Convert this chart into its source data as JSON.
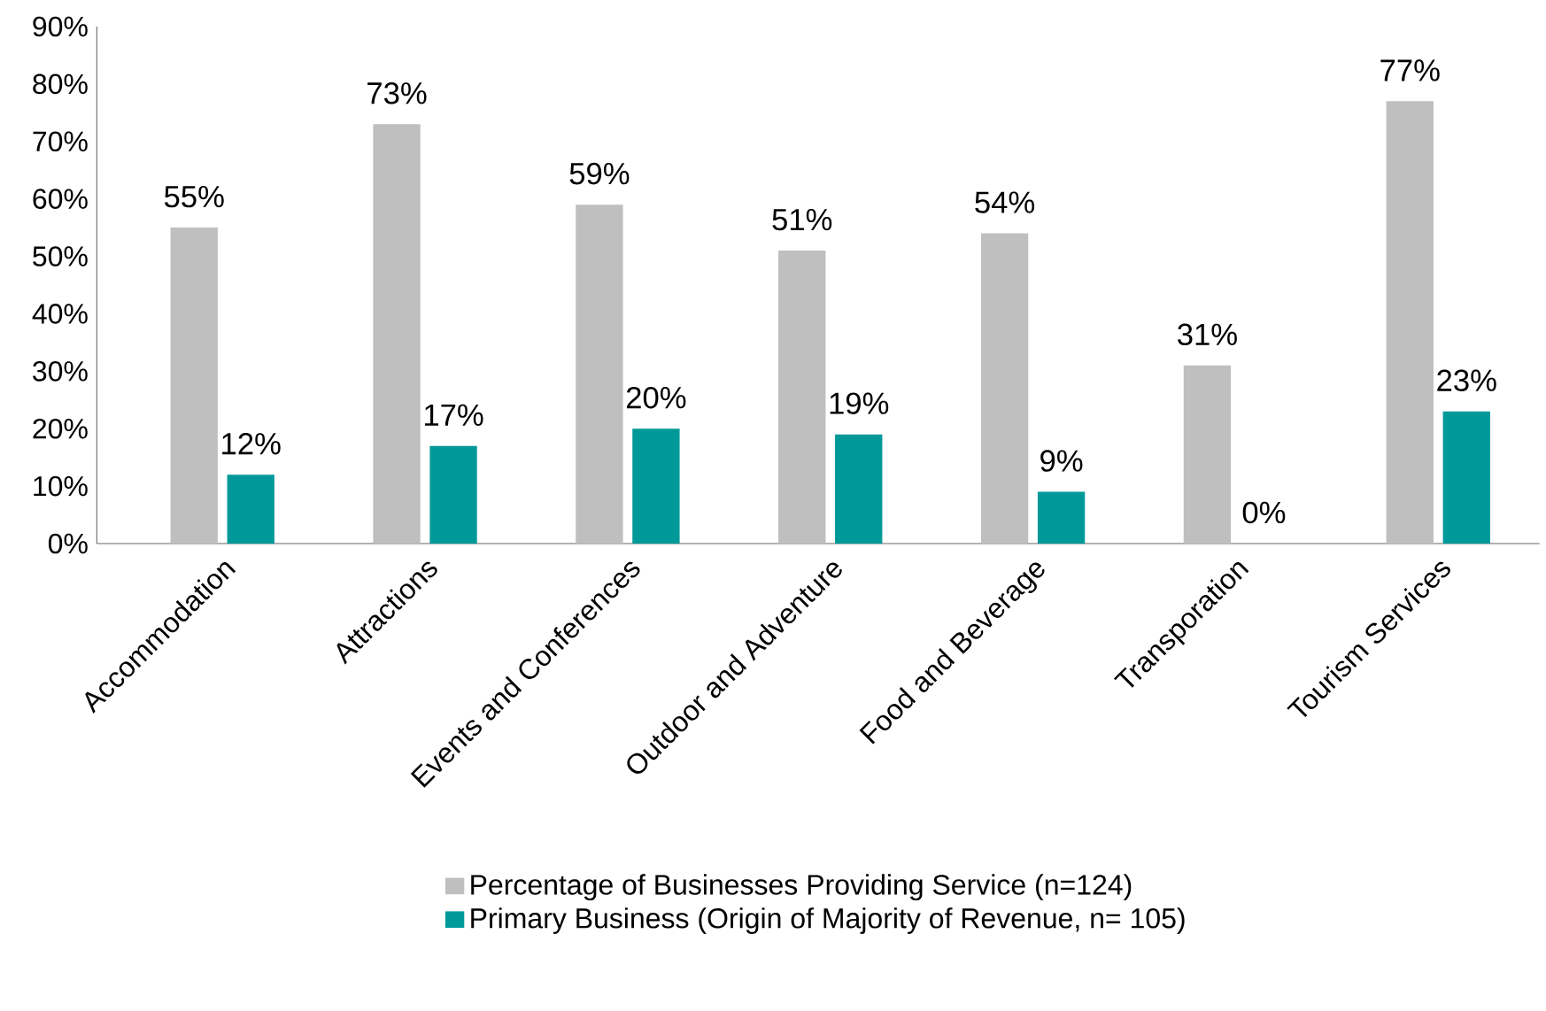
{
  "chart_data": {
    "type": "bar",
    "categories": [
      "Accommodation",
      "Attractions",
      "Events and Conferences",
      "Outdoor and Adventure",
      "Food and Beverage",
      "Transporation",
      "Tourism Services"
    ],
    "series": [
      {
        "name": "Percentage of Businesses Providing Service (n=124)",
        "color": "#bfbfbf",
        "values": [
          55,
          73,
          59,
          51,
          54,
          31,
          77
        ],
        "value_labels": [
          "55%",
          "73%",
          "59%",
          "51%",
          "54%",
          "31%",
          "77%"
        ]
      },
      {
        "name": "Primary Business (Origin of Majority of Revenue, n= 105)",
        "color": "#009999",
        "values": [
          12,
          17,
          20,
          19,
          9,
          0,
          23
        ],
        "value_labels": [
          "12%",
          "17%",
          "20%",
          "19%",
          "9%",
          "0%",
          "23%"
        ]
      }
    ],
    "ylim": [
      0,
      90
    ],
    "yticks": [
      {
        "value": 0,
        "label": "0%"
      },
      {
        "value": 10,
        "label": "10%"
      },
      {
        "value": 20,
        "label": "20%"
      },
      {
        "value": 30,
        "label": "30%"
      },
      {
        "value": 40,
        "label": "40%"
      },
      {
        "value": 50,
        "label": "50%"
      },
      {
        "value": 60,
        "label": "60%"
      },
      {
        "value": 70,
        "label": "70%"
      },
      {
        "value": 80,
        "label": "80%"
      },
      {
        "value": 90,
        "label": "90%"
      }
    ],
    "grid": false,
    "legend": "bottom"
  }
}
